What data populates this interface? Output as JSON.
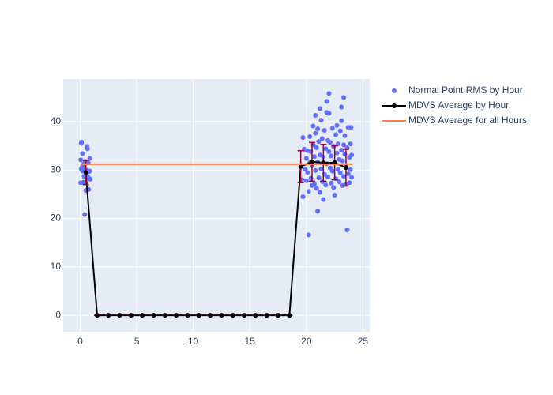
{
  "chart_data": {
    "type": "scatter",
    "xlim": [
      -1.5,
      25.6
    ],
    "ylim": [
      -3.4,
      48.8
    ],
    "xticks": [
      0,
      5,
      10,
      15,
      20,
      25
    ],
    "yticks": [
      0,
      10,
      20,
      30,
      40
    ],
    "grid": true,
    "legend": "right",
    "series": [
      {
        "name": "Normal Point RMS by Hour",
        "color": "#636efa",
        "mode": "markers",
        "x": [
          0.05,
          0.1,
          0.12,
          0.15,
          0.2,
          0.22,
          0.25,
          0.3,
          0.35,
          0.4,
          0.45,
          0.5,
          0.55,
          0.6,
          0.65,
          0.7,
          0.75,
          0.8,
          0.85,
          0.9,
          0.05,
          0.1,
          0.3,
          0.5,
          0.7,
          0.85,
          20.2,
          21.0,
          23.6,
          22.0,
          23.3,
          21.2,
          21.8,
          20.8,
          23.1,
          19.6,
          19.7,
          19.7,
          19.8,
          19.9,
          20.0,
          20.0,
          20.1,
          20.1,
          20.2,
          20.3,
          20.3,
          20.4,
          20.4,
          20.5,
          20.5,
          20.6,
          20.6,
          20.7,
          20.7,
          20.8,
          20.8,
          20.9,
          20.9,
          21.0,
          21.0,
          21.1,
          21.1,
          21.2,
          21.2,
          21.3,
          21.3,
          21.4,
          21.4,
          21.5,
          21.5,
          21.6,
          21.6,
          21.7,
          21.7,
          21.8,
          21.8,
          21.9,
          21.9,
          22.0,
          22.0,
          22.1,
          22.1,
          22.2,
          22.2,
          22.3,
          22.3,
          22.4,
          22.4,
          22.5,
          22.5,
          22.6,
          22.6,
          22.7,
          22.7,
          22.8,
          22.8,
          22.9,
          22.9,
          23.0,
          23.0,
          23.1,
          23.1,
          23.2,
          23.2,
          23.3,
          23.3,
          23.4,
          23.4,
          23.5,
          23.5,
          23.6,
          23.7,
          23.7,
          23.8,
          23.8,
          23.9,
          23.9,
          24.0,
          24.0,
          23.95
        ],
        "values": [
          32.1,
          35.5,
          35.8,
          30.5,
          33.4,
          29.8,
          31,
          27.5,
          28.7,
          20.8,
          31.8,
          25.8,
          29.2,
          34.9,
          34.4,
          31.5,
          26,
          29.7,
          32.4,
          28.1,
          27.4,
          30.2,
          31.2,
          30.0,
          28.5,
          29.8,
          16.6,
          21.5,
          17.6,
          45.8,
          45,
          42.7,
          44.2,
          41.3,
          43,
          28,
          36.7,
          24.5,
          34.3,
          30.2,
          32.4,
          27.8,
          34,
          29.5,
          25.6,
          31.5,
          36.9,
          33.8,
          28.3,
          26.8,
          30.9,
          39.1,
          35.2,
          27.1,
          32.8,
          37.6,
          29.9,
          34.6,
          26.2,
          38.5,
          31.7,
          28.4,
          35.9,
          33.1,
          25.4,
          40.3,
          30.2,
          36.5,
          27.6,
          23.9,
          32.7,
          38.2,
          29.1,
          34.4,
          26.9,
          41.9,
          31.3,
          36.1,
          28.6,
          33.8,
          41.7,
          30.4,
          35.7,
          27.3,
          32.9,
          38.6,
          29.8,
          34.9,
          26.4,
          24.8,
          31.6,
          37.3,
          28.2,
          33.5,
          39.2,
          30.1,
          35.4,
          27.6,
          32.2,
          38.1,
          29.4,
          40.2,
          34.1,
          26.8,
          31.9,
          35.2,
          28.7,
          37.1,
          33.3,
          27.0,
          30.8,
          34.6,
          38.8,
          29.2,
          32.6,
          27.4,
          35.4,
          30.1,
          33.1,
          28.5,
          38.8
        ]
      },
      {
        "name": "MDVS Average by Hour",
        "color": "#000000",
        "error_color": "#990033",
        "mode": "lines+markers",
        "x": [
          0.5,
          1.5,
          2.5,
          3.5,
          4.5,
          5.5,
          6.5,
          7.5,
          8.5,
          9.5,
          10.5,
          11.5,
          12.5,
          13.5,
          14.5,
          15.5,
          16.5,
          17.5,
          18.5,
          19.5,
          20.5,
          21.5,
          22.5,
          23.5
        ],
        "values": [
          29.5,
          0,
          0,
          0,
          0,
          0,
          0,
          0,
          0,
          0,
          0,
          0,
          0,
          0,
          0,
          0,
          0,
          0,
          0,
          30.7,
          31.7,
          31.5,
          31.5,
          30.5
        ],
        "errors": [
          2.5,
          0,
          0,
          0,
          0,
          0,
          0,
          0,
          0,
          0,
          0,
          0,
          0,
          0,
          0,
          0,
          0,
          0,
          0,
          3.3,
          4,
          3.8,
          3.5,
          3.8
        ]
      },
      {
        "name": "MDVS Average for all Hours",
        "color": "#ff7f50",
        "mode": "lines",
        "x": [
          0,
          24
        ],
        "values": [
          31.2,
          31.2
        ]
      }
    ]
  }
}
